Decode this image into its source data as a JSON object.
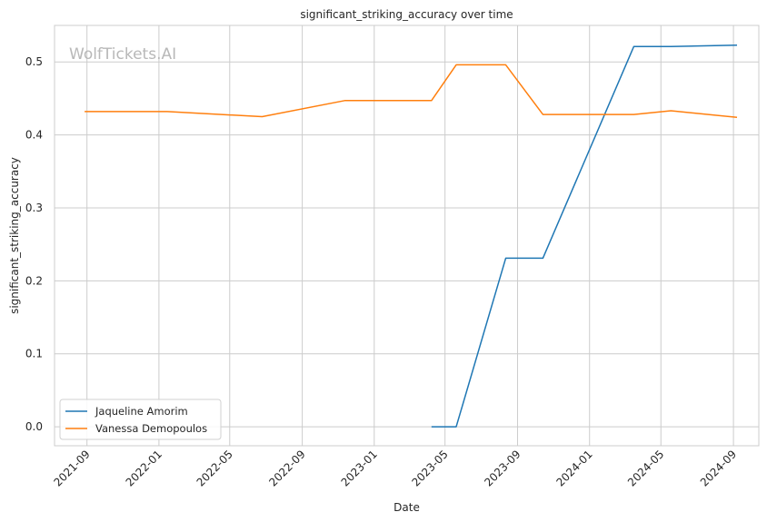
{
  "chart_data": {
    "type": "line",
    "title": "significant_striking_accuracy over time",
    "xlabel": "Date",
    "ylabel": "significant_striking_accuracy",
    "watermark": "WolfTickets.AI",
    "x_axis": "date",
    "xlim": [
      "2021-07-08",
      "2024-10-14"
    ],
    "ylim": [
      -0.026,
      0.55
    ],
    "x_tick_labels": [
      "2021-09",
      "2022-01",
      "2022-05",
      "2022-09",
      "2023-01",
      "2023-05",
      "2023-09",
      "2024-01",
      "2024-05",
      "2024-09"
    ],
    "y_ticks": [
      0.0,
      0.1,
      0.2,
      0.3,
      0.4,
      0.5
    ],
    "y_tick_labels": [
      "0.0",
      "0.1",
      "0.2",
      "0.3",
      "0.4",
      "0.5"
    ],
    "grid": true,
    "legend_position": "lower-left",
    "series": [
      {
        "name": "Jaqueline Amorim",
        "color": "#1f77b4",
        "points": [
          {
            "x": "2023-04-08",
            "y": 0.0
          },
          {
            "x": "2023-05-20",
            "y": 0.0
          },
          {
            "x": "2023-08-12",
            "y": 0.231
          },
          {
            "x": "2023-10-14",
            "y": 0.231
          },
          {
            "x": "2024-03-16",
            "y": 0.521
          },
          {
            "x": "2024-05-18",
            "y": 0.521
          },
          {
            "x": "2024-09-07",
            "y": 0.523
          }
        ]
      },
      {
        "name": "Vanessa Demopoulos",
        "color": "#ff7f0e",
        "points": [
          {
            "x": "2021-08-28",
            "y": 0.432
          },
          {
            "x": "2022-01-15",
            "y": 0.432
          },
          {
            "x": "2022-06-25",
            "y": 0.425
          },
          {
            "x": "2022-11-12",
            "y": 0.447
          },
          {
            "x": "2023-04-08",
            "y": 0.447
          },
          {
            "x": "2023-05-20",
            "y": 0.496
          },
          {
            "x": "2023-08-12",
            "y": 0.496
          },
          {
            "x": "2023-10-14",
            "y": 0.428
          },
          {
            "x": "2024-03-16",
            "y": 0.428
          },
          {
            "x": "2024-05-18",
            "y": 0.433
          },
          {
            "x": "2024-09-07",
            "y": 0.424
          }
        ]
      }
    ]
  }
}
